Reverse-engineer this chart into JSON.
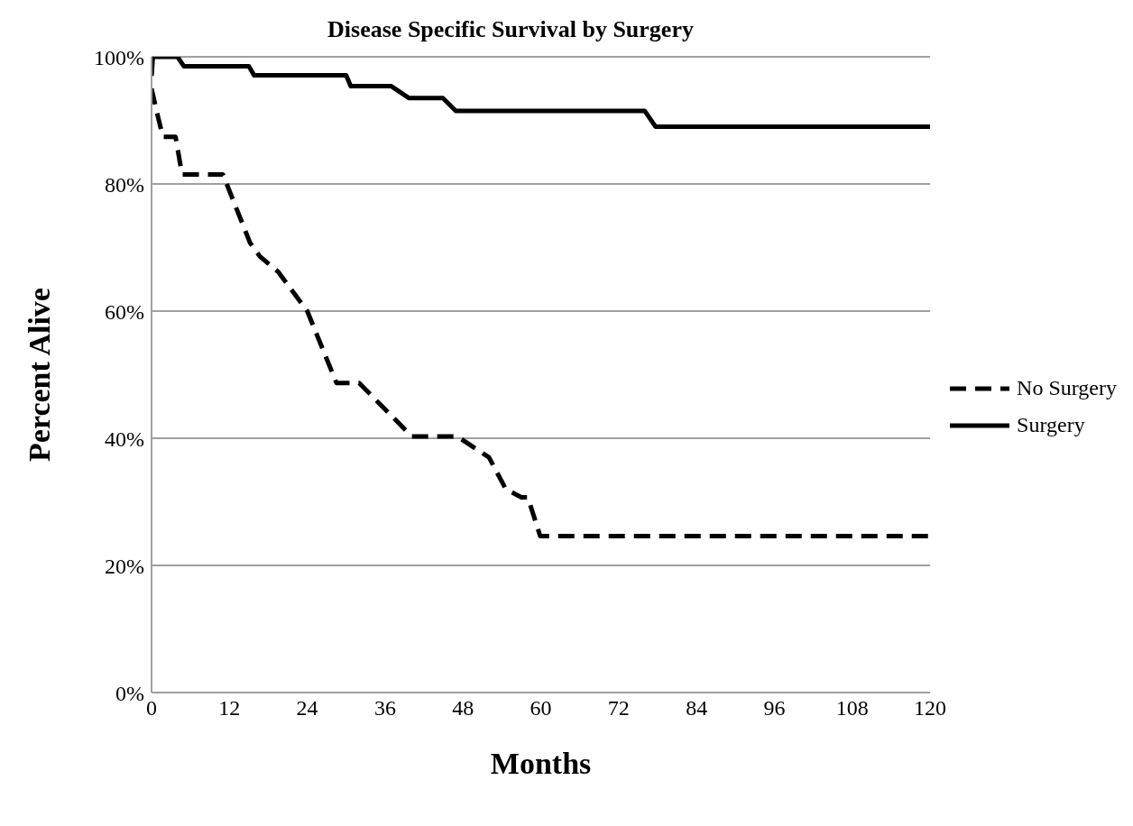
{
  "chart_data": {
    "type": "line",
    "title": "Disease Specific Survival by Surgery",
    "xlabel": "Months",
    "ylabel": "Percent Alive",
    "series": [
      {
        "name": "No Surgery",
        "color": "#000000",
        "line_style": "dashed",
        "x": [
          0,
          0.75,
          1.75,
          3.7,
          4.7,
          11,
          15.2,
          16.7,
          19.5,
          24,
          28.5,
          32,
          40.1,
          47.1,
          52,
          54.6,
          57,
          58,
          59.9,
          120
        ],
        "values": [
          95,
          91.6,
          87.4,
          87.4,
          81.5,
          81.5,
          70.7,
          68.6,
          66.2,
          60,
          48.7,
          48.7,
          40.3,
          40.3,
          37,
          32,
          30.7,
          30.7,
          24.6,
          24.6
        ]
      },
      {
        "name": "Surgery",
        "color": "#000000",
        "line_style": "solid",
        "x": [
          0,
          0.2,
          4,
          5,
          15,
          15.8,
          30,
          30.7,
          36.9,
          39.7,
          44.9,
          46.9,
          76,
          77.7,
          120
        ],
        "values": [
          97,
          100,
          100,
          98.5,
          98.5,
          97.1,
          97.1,
          95.4,
          95.4,
          93.5,
          93.5,
          91.5,
          91.5,
          89,
          89
        ]
      }
    ],
    "xlim": [
      0,
      120
    ],
    "xticks": [
      0,
      12,
      24,
      36,
      48,
      60,
      72,
      84,
      96,
      108,
      120
    ],
    "ylim": [
      0,
      100
    ],
    "yticks": [
      {
        "value": 0,
        "label": "0%"
      },
      {
        "value": 20,
        "label": "20%"
      },
      {
        "value": 40,
        "label": "40%"
      },
      {
        "value": 60,
        "label": "60%"
      },
      {
        "value": 80,
        "label": "80%"
      },
      {
        "value": 100,
        "label": "100%"
      }
    ],
    "grid": "y",
    "legend": "right",
    "marker": "none"
  }
}
